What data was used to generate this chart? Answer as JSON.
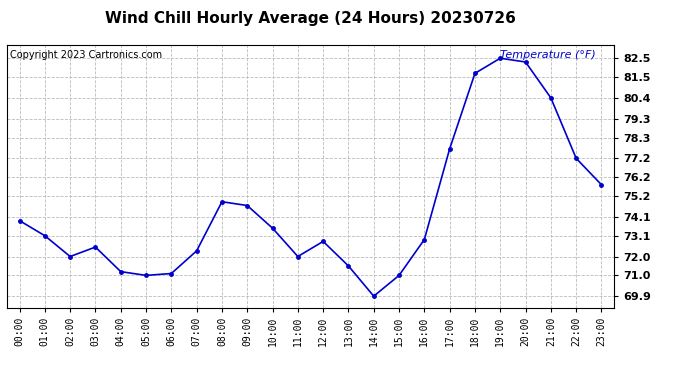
{
  "title": "Wind Chill Hourly Average (24 Hours) 20230726",
  "copyright_text": "Copyright 2023 Cartronics.com",
  "legend_label": "Temperature (°F)",
  "hours": [
    "00:00",
    "01:00",
    "02:00",
    "03:00",
    "04:00",
    "05:00",
    "06:00",
    "07:00",
    "08:00",
    "09:00",
    "10:00",
    "11:00",
    "12:00",
    "13:00",
    "14:00",
    "15:00",
    "16:00",
    "17:00",
    "18:00",
    "19:00",
    "20:00",
    "21:00",
    "22:00",
    "23:00"
  ],
  "values": [
    73.9,
    73.1,
    72.0,
    72.5,
    71.2,
    71.0,
    71.1,
    72.3,
    74.9,
    74.7,
    73.5,
    72.0,
    72.8,
    71.5,
    69.9,
    71.0,
    72.9,
    77.7,
    81.7,
    82.5,
    82.3,
    80.4,
    77.2,
    75.8
  ],
  "line_color": "#0000cc",
  "marker_color": "#0000cc",
  "background_color": "#ffffff",
  "grid_color": "#bbbbbb",
  "ylim_min": 69.3,
  "ylim_max": 83.2,
  "ytick_values": [
    69.9,
    71.0,
    72.0,
    73.1,
    74.1,
    75.2,
    76.2,
    77.2,
    78.3,
    79.3,
    80.4,
    81.5,
    82.5
  ],
  "title_fontsize": 11,
  "legend_fontsize": 8,
  "copyright_fontsize": 7,
  "tick_fontsize": 7,
  "ytick_fontsize": 8
}
